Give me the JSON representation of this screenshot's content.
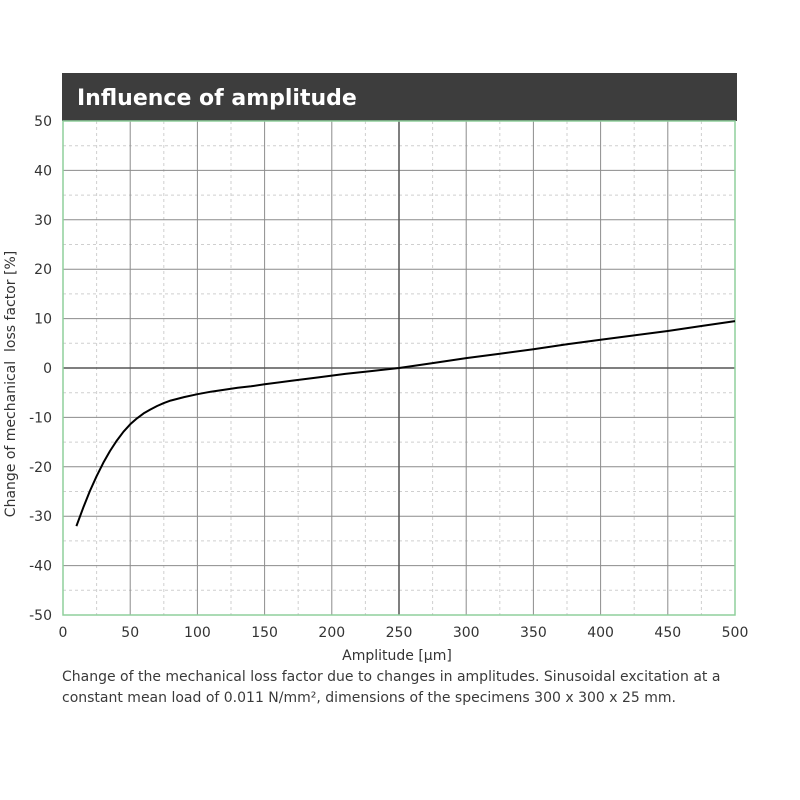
{
  "colors": {
    "title_bar": "#3d3d3d",
    "title_text": "#ffffff",
    "plot_border": "#8fcf9c",
    "major_grid": "#8c8c8c",
    "minor_grid": "#cfcfcf",
    "zero_lines": "#555555",
    "curve": "#000000",
    "text": "#333333"
  },
  "chart_data": {
    "type": "line",
    "title": "Influence of amplitude",
    "xlabel": "Amplitude [µm]",
    "ylabel": "Change of mechanical  loss factor [%]",
    "xlim": [
      0,
      500
    ],
    "ylim": [
      -50,
      50
    ],
    "xticks": [
      0,
      50,
      100,
      150,
      200,
      250,
      300,
      350,
      400,
      450,
      500
    ],
    "yticks": [
      50,
      40,
      30,
      20,
      10,
      0,
      -10,
      -20,
      -30,
      -40,
      -50
    ],
    "ytick_labels": [
      "50",
      "40",
      "30",
      "20",
      "10",
      "0",
      "-10",
      "-20",
      "-30",
      "-40",
      "-50"
    ],
    "grid": true,
    "series": [
      {
        "x": [
          10,
          15,
          20,
          25,
          30,
          35,
          40,
          45,
          50,
          55,
          60,
          65,
          70,
          75,
          80,
          90,
          100,
          110,
          120,
          130,
          140,
          150,
          170,
          190,
          210,
          230,
          250,
          275,
          300,
          325,
          350,
          375,
          400,
          425,
          450,
          475,
          500
        ],
        "y": [
          -32,
          -28.3,
          -24.9,
          -21.9,
          -19.2,
          -16.8,
          -14.7,
          -12.9,
          -11.4,
          -10.2,
          -9.2,
          -8.4,
          -7.7,
          -7.1,
          -6.6,
          -5.9,
          -5.3,
          -4.8,
          -4.4,
          -4.0,
          -3.7,
          -3.3,
          -2.6,
          -1.9,
          -1.2,
          -0.6,
          0,
          1.0,
          2.0,
          2.9,
          3.8,
          4.8,
          5.7,
          6.6,
          7.5,
          8.5,
          9.5
        ]
      }
    ]
  },
  "caption": {
    "line1": "Change of the mechanical loss factor due to changes in amplitudes. Sinusoidal excitation at a",
    "line2": "constant mean load of 0.011 N/mm², dimensions of the specimens 300 x 300 x 25 mm."
  }
}
